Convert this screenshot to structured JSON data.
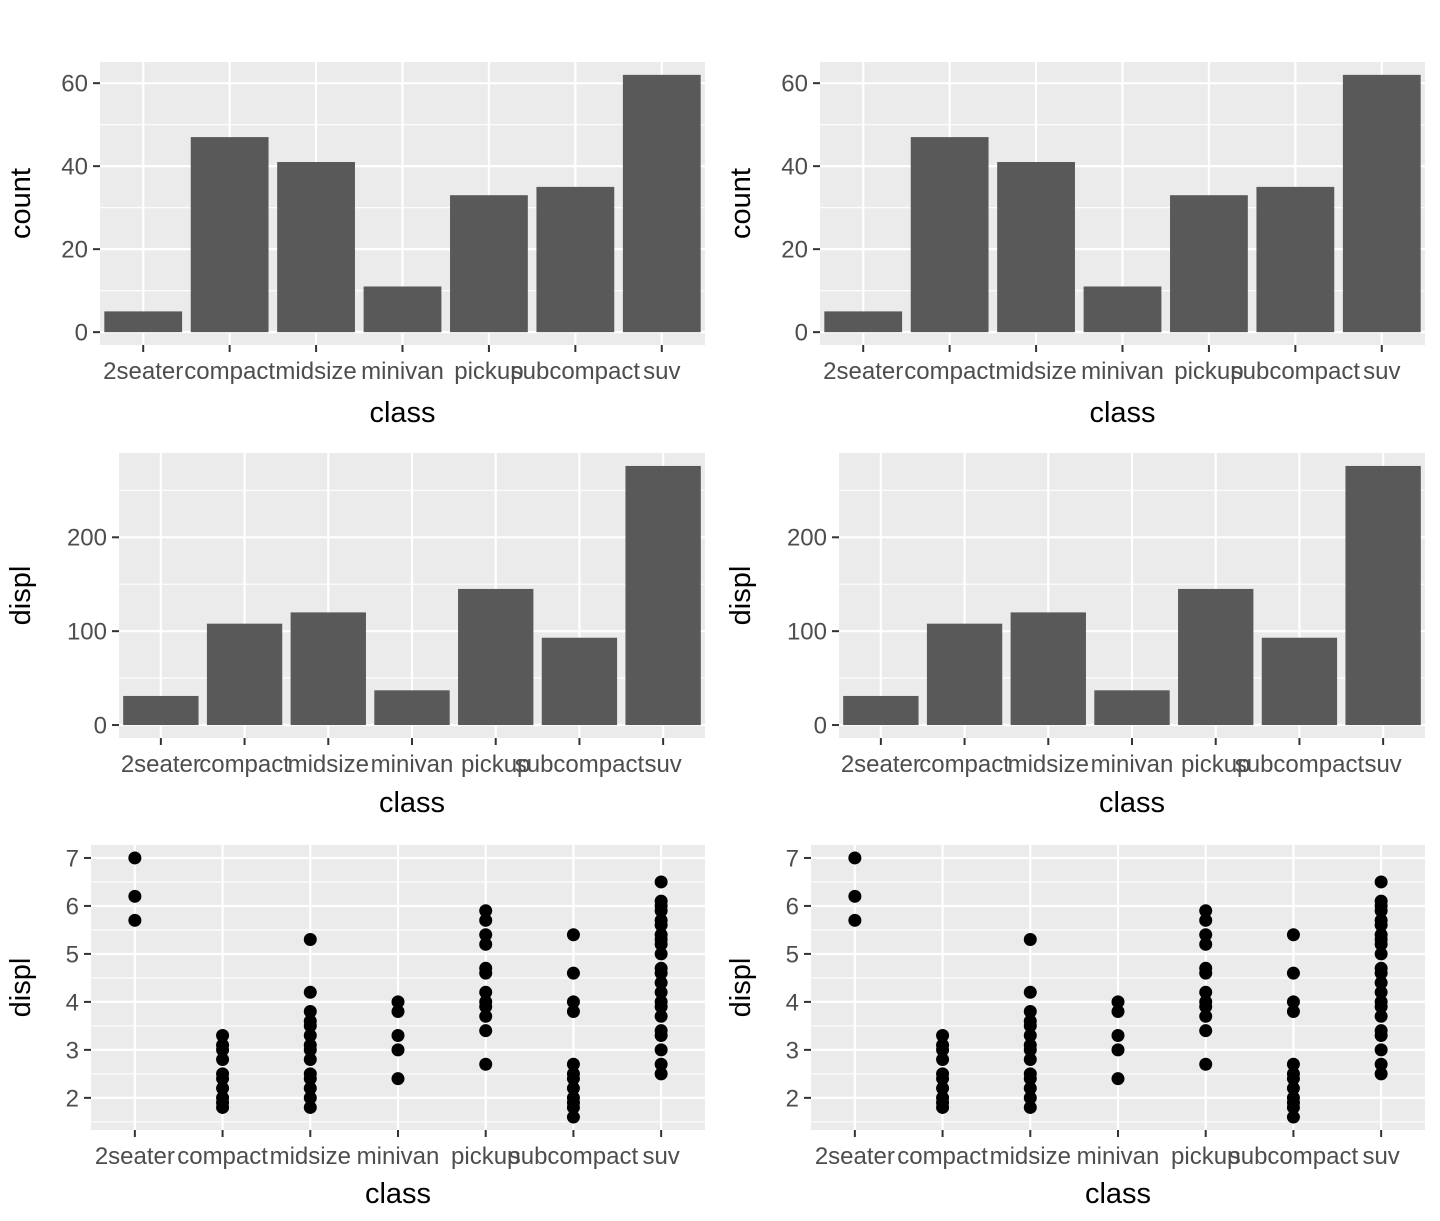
{
  "figure": {
    "background": "#FFFFFF",
    "panel_background": "#EBEBEB",
    "grid_color": "#FFFFFF",
    "bar_fill": "#595959",
    "point_color": "#000000",
    "axis_text_color": "#4D4D4D",
    "axis_title_color": "#000000",
    "tick_mark_color": "#333333",
    "layout_note": "2 columns x 3 rows of ggplot-style panels; left and right columns are identical duplicates",
    "legend": "none"
  },
  "categories": [
    "2seater",
    "compact",
    "midsize",
    "minivan",
    "pickup",
    "subcompact",
    "suv"
  ],
  "chart_data": [
    {
      "type": "bar",
      "title": "",
      "xlabel": "class",
      "ylabel": "count",
      "categories": [
        "2seater",
        "compact",
        "midsize",
        "minivan",
        "pickup",
        "subcompact",
        "suv"
      ],
      "values": [
        5,
        47,
        41,
        11,
        33,
        35,
        62
      ],
      "yticks": [
        0,
        20,
        40,
        60
      ],
      "ylim": [
        -3.1,
        65.1
      ],
      "grid": "white major + minor horizontal lines, white vertical major lines at band centers, on grey panel",
      "legend": "none"
    },
    {
      "type": "bar",
      "title": "",
      "xlabel": "class",
      "ylabel": "displ",
      "categories": [
        "2seater",
        "compact",
        "midsize",
        "minivan",
        "pickup",
        "subcompact",
        "suv"
      ],
      "values": [
        31,
        108,
        120,
        37,
        145,
        93,
        276
      ],
      "yticks": [
        0,
        100,
        200
      ],
      "ylim": [
        -13.8,
        289.8
      ],
      "grid": "white major + minor horizontal lines, white vertical major lines at band centers, on grey panel",
      "legend": "none"
    },
    {
      "type": "scatter",
      "title": "",
      "xlabel": "class",
      "ylabel": "displ",
      "categories": [
        "2seater",
        "compact",
        "midsize",
        "minivan",
        "pickup",
        "subcompact",
        "suv"
      ],
      "series": [
        {
          "category": "2seater",
          "values": [
            5.7,
            6.2,
            7.0
          ]
        },
        {
          "category": "compact",
          "values": [
            1.8,
            1.9,
            2.0,
            2.2,
            2.4,
            2.5,
            2.8,
            3.0,
            3.1,
            3.3
          ]
        },
        {
          "category": "midsize",
          "values": [
            1.8,
            2.0,
            2.2,
            2.4,
            2.5,
            2.8,
            3.0,
            3.1,
            3.3,
            3.5,
            3.6,
            3.8,
            4.2,
            5.3
          ]
        },
        {
          "category": "minivan",
          "values": [
            2.4,
            3.0,
            3.3,
            3.8,
            4.0
          ]
        },
        {
          "category": "pickup",
          "values": [
            2.7,
            3.4,
            3.7,
            3.9,
            4.0,
            4.2,
            4.6,
            4.7,
            5.2,
            5.4,
            5.7,
            5.9
          ]
        },
        {
          "category": "subcompact",
          "values": [
            1.6,
            1.8,
            1.9,
            2.0,
            2.2,
            2.4,
            2.5,
            2.7,
            3.8,
            4.0,
            4.6,
            5.4
          ]
        },
        {
          "category": "suv",
          "values": [
            2.5,
            2.7,
            3.0,
            3.3,
            3.4,
            3.7,
            3.9,
            4.0,
            4.2,
            4.4,
            4.6,
            4.7,
            5.0,
            5.2,
            5.3,
            5.4,
            5.6,
            5.7,
            5.9,
            6.0,
            6.1,
            6.5
          ]
        }
      ],
      "yticks": [
        2,
        3,
        4,
        5,
        6,
        7
      ],
      "ylim": [
        1.33,
        7.27
      ],
      "grid": "white major + minor horizontal lines, white vertical major lines at band centers, on grey panel",
      "legend": "none"
    }
  ],
  "grid_cells": [
    {
      "id": "top-left",
      "chart": 0
    },
    {
      "id": "top-right",
      "chart": 0
    },
    {
      "id": "middle-left",
      "chart": 1
    },
    {
      "id": "middle-right",
      "chart": 1
    },
    {
      "id": "bottom-left",
      "chart": 2
    },
    {
      "id": "bottom-right",
      "chart": 2
    }
  ]
}
